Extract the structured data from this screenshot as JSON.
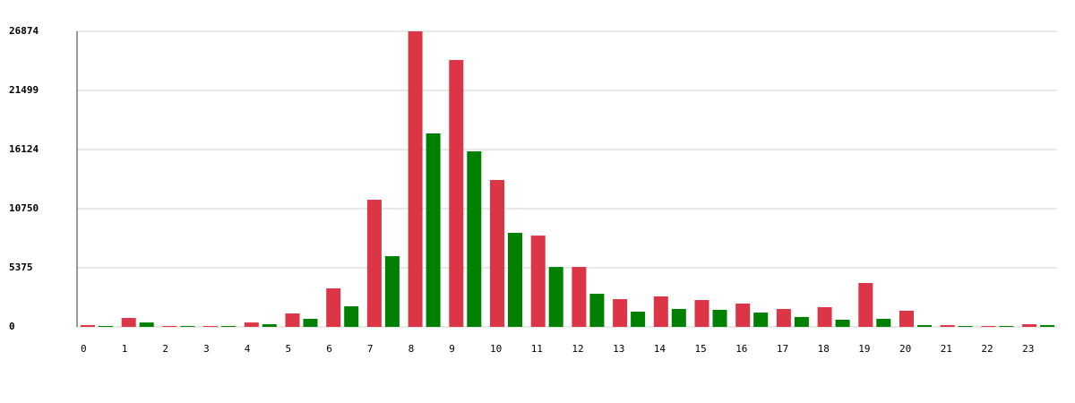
{
  "chart_data": {
    "type": "bar",
    "categories": [
      "0",
      "1",
      "2",
      "3",
      "4",
      "5",
      "6",
      "7",
      "8",
      "9",
      "10",
      "11",
      "12",
      "13",
      "14",
      "15",
      "16",
      "17",
      "18",
      "19",
      "20",
      "21",
      "22",
      "23"
    ],
    "series": [
      {
        "color": "#dc3545",
        "values": [
          160,
          810,
          80,
          80,
          400,
          1220,
          3500,
          11560,
          26874,
          24270,
          13360,
          8300,
          5450,
          2520,
          2770,
          2440,
          2120,
          1630,
          1790,
          3990,
          1470,
          160,
          80,
          240
        ]
      },
      {
        "color": "#008000",
        "values": [
          80,
          400,
          80,
          80,
          240,
          730,
          1870,
          6430,
          17590,
          15960,
          8550,
          5450,
          3010,
          1380,
          1630,
          1550,
          1300,
          900,
          650,
          730,
          160,
          80,
          80,
          160
        ]
      }
    ],
    "ylim": [
      0,
      26874
    ],
    "yticks": [
      0,
      5375,
      10750,
      16124,
      21499,
      26874
    ],
    "grid": true
  }
}
